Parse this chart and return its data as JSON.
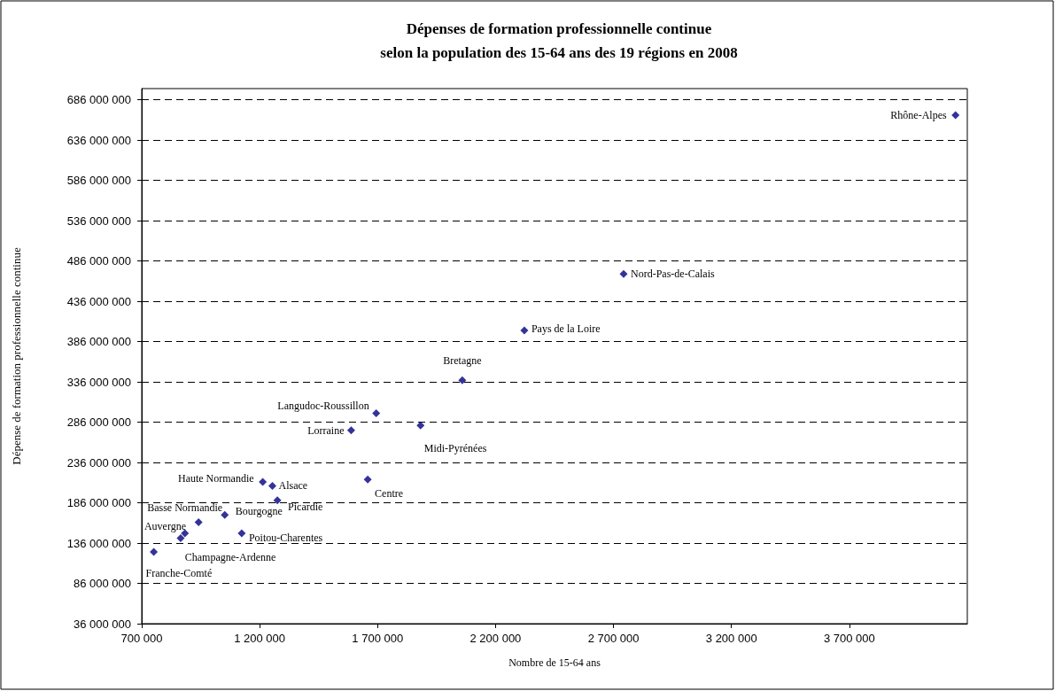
{
  "chart_data": {
    "type": "scatter",
    "title": "Dépenses de formation professionnelle continue\nselon la population des 15-64 ans des 19 régions en 2008",
    "xlabel": "Nombre de 15-64 ans",
    "ylabel": "Dépense de formation professionnelle continue",
    "x": [
      4150000,
      2743000,
      2322000,
      2059000,
      1694000,
      1588000,
      1882000,
      1658000,
      1275000,
      1254000,
      1213000,
      1124000,
      1052000,
      941000,
      883000,
      865000,
      751000
    ],
    "values": [
      667000000,
      470000000,
      400000000,
      338000000,
      297000000,
      276000000,
      282000000,
      215000000,
      189000000,
      207000000,
      212000000,
      148000000,
      171000000,
      162000000,
      148000000,
      142000000,
      125000000
    ],
    "color": "#000080",
    "marker": "diamond",
    "grid": "y",
    "annotations": [
      {
        "text": "Rhône-Alpes",
        "x": 4150000,
        "y": 667000000
      },
      {
        "text": "Nord-Pas-de-Calais",
        "x": 2743000,
        "y": 470000000
      },
      {
        "text": "Pays de la Loire",
        "x": 2322000,
        "y": 400000000
      },
      {
        "text": "Bretagne",
        "x": 2059000,
        "y": 338000000
      },
      {
        "text": "Langudoc-Roussillon",
        "x": 1694000,
        "y": 297000000
      },
      {
        "text": "Lorraine",
        "x": 1588000,
        "y": 276000000
      },
      {
        "text": "Midi-Pyrénées",
        "x": 1882000,
        "y": 282000000
      },
      {
        "text": "Centre",
        "x": 1658000,
        "y": 215000000
      },
      {
        "text": "Picardie",
        "x": 1275000,
        "y": 189000000
      },
      {
        "text": "Alsace",
        "x": 1254000,
        "y": 207000000
      },
      {
        "text": "Haute Normandie",
        "x": 1213000,
        "y": 212000000
      },
      {
        "text": "Poitou-Charentes",
        "x": 1124000,
        "y": 148000000
      },
      {
        "text": "Bourgogne",
        "x": 1052000,
        "y": 171000000
      },
      {
        "text": "Basse Normandie",
        "x": 941000,
        "y": 162000000
      },
      {
        "text": "Champagne-Ardenne",
        "x": 883000,
        "y": 148000000
      },
      {
        "text": "Auvergne",
        "x": 865000,
        "y": 142000000
      },
      {
        "text": "Franche-Comté",
        "x": 751000,
        "y": 125000000
      }
    ],
    "xlim": [
      700000,
      4200000
    ],
    "xticks": [
      {
        "value": 700000,
        "label": "700 000"
      },
      {
        "value": 1200000,
        "label": "1 200 000"
      },
      {
        "value": 1700000,
        "label": "1 700 000"
      },
      {
        "value": 2200000,
        "label": "2 200 000"
      },
      {
        "value": 2700000,
        "label": "2 700 000"
      },
      {
        "value": 3200000,
        "label": "3 200 000"
      },
      {
        "value": 3700000,
        "label": "3 700 000"
      }
    ],
    "ylim": [
      36000000,
      700000000
    ],
    "yticks": [
      {
        "value": 36000000,
        "label": "36 000 000"
      },
      {
        "value": 86000000,
        "label": "86 000 000"
      },
      {
        "value": 136000000,
        "label": "136 000 000"
      },
      {
        "value": 186000000,
        "label": "186 000 000"
      },
      {
        "value": 236000000,
        "label": "236 000 000"
      },
      {
        "value": 286000000,
        "label": "286 000 000"
      },
      {
        "value": 336000000,
        "label": "336 000 000"
      },
      {
        "value": 386000000,
        "label": "386 000 000"
      },
      {
        "value": 436000000,
        "label": "436 000 000"
      },
      {
        "value": 486000000,
        "label": "486 000 000"
      },
      {
        "value": 536000000,
        "label": "536 000 000"
      },
      {
        "value": 586000000,
        "label": "586 000 000"
      },
      {
        "value": 636000000,
        "label": "636 000 000"
      },
      {
        "value": 686000000,
        "label": "686 000 000"
      }
    ]
  }
}
